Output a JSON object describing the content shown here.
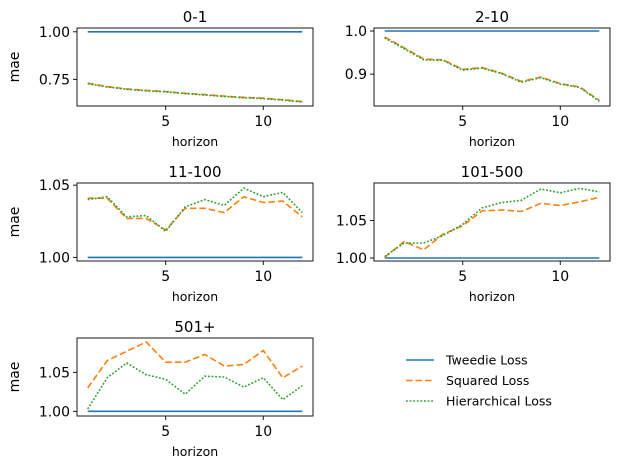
{
  "colors": {
    "tweedie": "#1f77b4",
    "squared": "#ff7f0e",
    "hierarchical": "#2ca02c"
  },
  "legend": {
    "placement": "lower-right",
    "items": [
      {
        "label": "Tweedie Loss",
        "style": "solid",
        "color": "#1f77b4"
      },
      {
        "label": "Squared Loss",
        "style": "dashed",
        "color": "#ff7f0e"
      },
      {
        "label": "Hierarchical Loss",
        "style": "dotted",
        "color": "#2ca02c"
      }
    ]
  },
  "chart_data": [
    {
      "type": "line",
      "title": "0-1",
      "xlabel": "horizon",
      "ylabel": "mae",
      "x": [
        1,
        2,
        3,
        4,
        5,
        6,
        7,
        8,
        9,
        10,
        11,
        12
      ],
      "xlim": [
        0.45,
        12.55
      ],
      "ylim": [
        0.61,
        1.02
      ],
      "xticks": [
        {
          "v": 5,
          "label": "5"
        },
        {
          "v": 10,
          "label": "10"
        }
      ],
      "yticks": [
        {
          "v": 0.75,
          "label": "0.75"
        },
        {
          "v": 1.0,
          "label": "1.00"
        }
      ],
      "series": [
        {
          "name": "Tweedie Loss",
          "style": "solid",
          "values": [
            1,
            1,
            1,
            1,
            1,
            1,
            1,
            1,
            1,
            1,
            1,
            1
          ]
        },
        {
          "name": "Squared Loss",
          "style": "dashed",
          "values": [
            0.73,
            0.712,
            0.7,
            0.692,
            0.686,
            0.677,
            0.67,
            0.662,
            0.655,
            0.651,
            0.643,
            0.633
          ]
        },
        {
          "name": "Hierarchical Loss",
          "style": "dotted",
          "values": [
            0.728,
            0.71,
            0.698,
            0.69,
            0.684,
            0.675,
            0.668,
            0.66,
            0.653,
            0.649,
            0.641,
            0.631
          ]
        }
      ]
    },
    {
      "type": "line",
      "title": "2-10",
      "xlabel": "horizon",
      "ylabel": "",
      "x": [
        1,
        2,
        3,
        4,
        5,
        6,
        7,
        8,
        9,
        10,
        11,
        12
      ],
      "xlim": [
        0.45,
        12.55
      ],
      "ylim": [
        0.826,
        1.007
      ],
      "xticks": [
        {
          "v": 5,
          "label": "5"
        },
        {
          "v": 10,
          "label": "10"
        }
      ],
      "yticks": [
        {
          "v": 0.9,
          "label": "0.9"
        },
        {
          "v": 1.0,
          "label": "1.0"
        }
      ],
      "series": [
        {
          "name": "Tweedie Loss",
          "style": "solid",
          "values": [
            1,
            1,
            1,
            1,
            1,
            1,
            1,
            1,
            1,
            1,
            1,
            1
          ]
        },
        {
          "name": "Squared Loss",
          "style": "dashed",
          "values": [
            0.986,
            0.961,
            0.935,
            0.933,
            0.911,
            0.915,
            0.902,
            0.883,
            0.893,
            0.878,
            0.87,
            0.839
          ]
        },
        {
          "name": "Hierarchical Loss",
          "style": "dotted",
          "values": [
            0.984,
            0.959,
            0.933,
            0.932,
            0.909,
            0.914,
            0.901,
            0.881,
            0.892,
            0.877,
            0.869,
            0.837
          ]
        }
      ]
    },
    {
      "type": "line",
      "title": "11-100",
      "xlabel": "horizon",
      "ylabel": "mae",
      "x": [
        1,
        2,
        3,
        4,
        5,
        6,
        7,
        8,
        9,
        10,
        11,
        12
      ],
      "xlim": [
        0.45,
        12.55
      ],
      "ylim": [
        0.9975,
        1.0515
      ],
      "xticks": [
        {
          "v": 5,
          "label": "5"
        },
        {
          "v": 10,
          "label": "10"
        }
      ],
      "yticks": [
        {
          "v": 1.0,
          "label": "1.00"
        },
        {
          "v": 1.05,
          "label": "1.05"
        }
      ],
      "series": [
        {
          "name": "Tweedie Loss",
          "style": "solid",
          "values": [
            1,
            1,
            1,
            1,
            1,
            1,
            1,
            1,
            1,
            1,
            1,
            1
          ]
        },
        {
          "name": "Squared Loss",
          "style": "dashed",
          "values": [
            1.041,
            1.041,
            1.027,
            1.027,
            1.019,
            1.034,
            1.034,
            1.031,
            1.042,
            1.038,
            1.039,
            1.028
          ]
        },
        {
          "name": "Hierarchical Loss",
          "style": "dotted",
          "values": [
            1.04,
            1.042,
            1.028,
            1.029,
            1.018,
            1.035,
            1.04,
            1.036,
            1.048,
            1.042,
            1.045,
            1.031
          ]
        }
      ]
    },
    {
      "type": "line",
      "title": "101-500",
      "xlabel": "horizon",
      "ylabel": "",
      "x": [
        1,
        2,
        3,
        4,
        5,
        6,
        7,
        8,
        9,
        10,
        11,
        12
      ],
      "xlim": [
        0.45,
        12.55
      ],
      "ylim": [
        0.996,
        1.1
      ],
      "xticks": [
        {
          "v": 5,
          "label": "5"
        },
        {
          "v": 10,
          "label": "10"
        }
      ],
      "yticks": [
        {
          "v": 1.0,
          "label": "1.00"
        },
        {
          "v": 1.05,
          "label": "1.05"
        }
      ],
      "series": [
        {
          "name": "Tweedie Loss",
          "style": "solid",
          "values": [
            1,
            1,
            1,
            1,
            1,
            1,
            1,
            1,
            1,
            1,
            1,
            1
          ]
        },
        {
          "name": "Squared Loss",
          "style": "dashed",
          "values": [
            1.001,
            1.022,
            1.011,
            1.032,
            1.043,
            1.063,
            1.064,
            1.062,
            1.073,
            1.07,
            1.075,
            1.081
          ]
        },
        {
          "name": "Hierarchical Loss",
          "style": "dotted",
          "values": [
            1.002,
            1.02,
            1.02,
            1.03,
            1.045,
            1.067,
            1.074,
            1.077,
            1.092,
            1.087,
            1.093,
            1.088
          ]
        }
      ]
    },
    {
      "type": "line",
      "title": "501+",
      "xlabel": "horizon",
      "ylabel": "mae",
      "x": [
        1,
        2,
        3,
        4,
        5,
        6,
        7,
        8,
        9,
        10,
        11,
        12
      ],
      "xlim": [
        0.45,
        12.55
      ],
      "ylim": [
        0.994,
        1.094
      ],
      "xticks": [
        {
          "v": 5,
          "label": "5"
        },
        {
          "v": 10,
          "label": "10"
        }
      ],
      "yticks": [
        {
          "v": 1.0,
          "label": "1.00"
        },
        {
          "v": 1.05,
          "label": "1.05"
        }
      ],
      "series": [
        {
          "name": "Tweedie Loss",
          "style": "solid",
          "values": [
            1,
            1,
            1,
            1,
            1,
            1,
            1,
            1,
            1,
            1,
            1,
            1
          ]
        },
        {
          "name": "Squared Loss",
          "style": "dashed",
          "values": [
            1.03,
            1.065,
            1.077,
            1.089,
            1.063,
            1.063,
            1.073,
            1.058,
            1.06,
            1.078,
            1.043,
            1.058
          ]
        },
        {
          "name": "Hierarchical Loss",
          "style": "dotted",
          "values": [
            1.003,
            1.043,
            1.062,
            1.047,
            1.041,
            1.022,
            1.045,
            1.044,
            1.031,
            1.043,
            1.015,
            1.033
          ]
        }
      ]
    }
  ]
}
